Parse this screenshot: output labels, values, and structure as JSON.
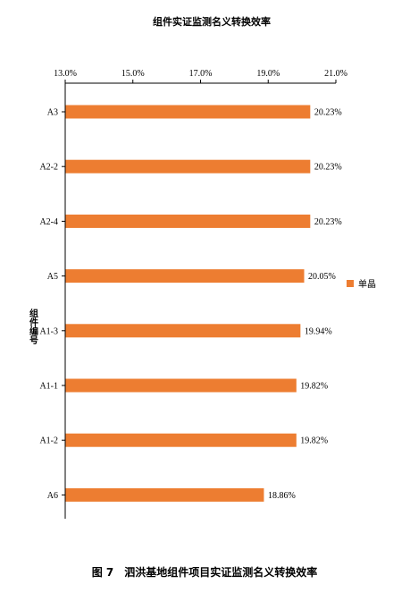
{
  "chart_data": {
    "type": "bar",
    "orientation": "horizontal",
    "title": "组件实证监测名义转换效率",
    "ylabel": "组件编号",
    "xlim": [
      0.13,
      0.21
    ],
    "x_ticks": [
      "13.0%",
      "15.0%",
      "17.0%",
      "19.0%",
      "21.0%"
    ],
    "x_tick_values": [
      0.13,
      0.15,
      0.17,
      0.19,
      0.21
    ],
    "x_axis_position": "top",
    "grid": false,
    "legend_position": "right",
    "categories": [
      "A3",
      "A2-2",
      "A2-4",
      "A5",
      "A1-3",
      "A1-1",
      "A1-2",
      "A6"
    ],
    "series": [
      {
        "name": "单晶",
        "color": "#ED7D31",
        "values": [
          0.2023,
          0.2023,
          0.2023,
          0.2005,
          0.1994,
          0.1982,
          0.1982,
          0.1886
        ],
        "labels": [
          "20.23%",
          "20.23%",
          "20.23%",
          "20.05%",
          "19.94%",
          "19.82%",
          "19.82%",
          "18.86%"
        ]
      }
    ]
  },
  "caption": "图 7　泗洪基地组件项目实证监测名义转换效率"
}
